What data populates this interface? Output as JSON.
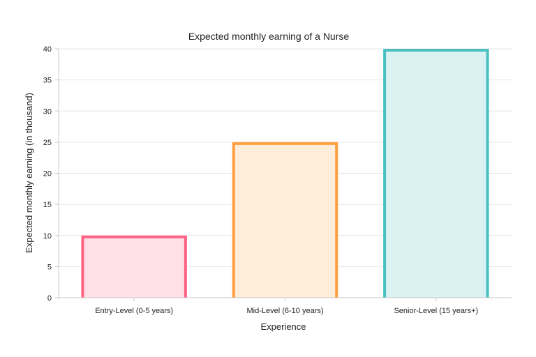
{
  "chart_data": {
    "type": "bar",
    "title": "Expected monthly earning of a Nurse",
    "xlabel": "Experience",
    "ylabel": "Expected monthly earning (in thousand)",
    "categories": [
      "Entry-Level (0-5 years)",
      "Mid-Level (6-10 years)",
      "Senior-Level (15 years+)"
    ],
    "values": [
      10,
      25,
      40
    ],
    "ylim": [
      0,
      40
    ],
    "yticks": [
      0,
      5,
      10,
      15,
      20,
      25,
      30,
      35,
      40
    ],
    "grid": true,
    "legend": "none",
    "bar_border_colors": [
      "#ff6384",
      "#ff9f40",
      "#4bc0c0"
    ],
    "bar_fill_colors": [
      "#ffe0e6",
      "#ffecd9",
      "#dbf2f2"
    ]
  }
}
